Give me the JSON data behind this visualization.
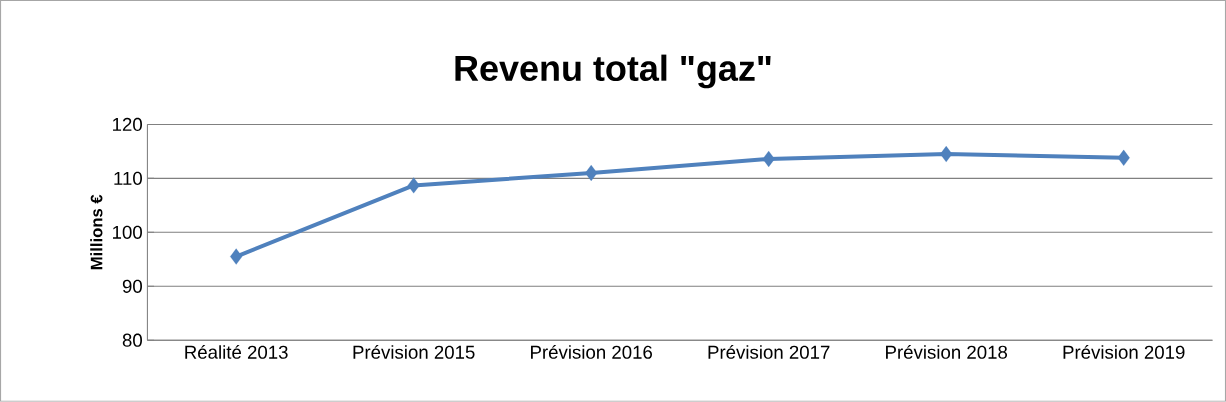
{
  "chart_data": {
    "type": "line",
    "title": "Revenu total \"gaz\"",
    "ylabel": "Millions €",
    "categories": [
      "Réalité 2013",
      "Prévision 2015",
      "Prévision 2016",
      "Prévision 2017",
      "Prévision 2018",
      "Prévision 2019"
    ],
    "series": [
      {
        "color": "#4f81bd",
        "values": [
          95.5,
          108.7,
          111.0,
          113.6,
          114.5,
          113.8
        ]
      }
    ],
    "ylim": [
      80,
      120
    ],
    "yticks": [
      80,
      90,
      100,
      110,
      120
    ],
    "grid": "y",
    "marker": "diamond",
    "line_style": "solid"
  }
}
